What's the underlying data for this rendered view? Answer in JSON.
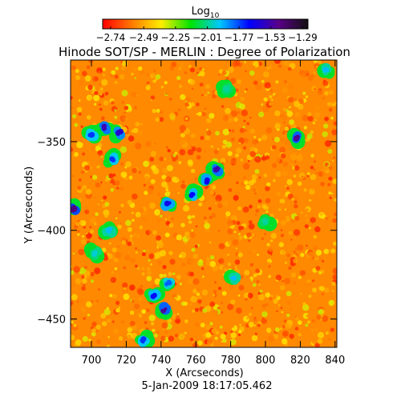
{
  "chart_data": {
    "type": "heatmap",
    "title": "Hinode SOT/SP - MERLIN : Degree of Polarization",
    "subtitle": "",
    "date": "5-Jan-2009 18:17:05.462",
    "xlabel": "X (Arcseconds)",
    "ylabel": "Y (Arcseconds)",
    "xlim": [
      688,
      841
    ],
    "ylim": [
      -466,
      -304
    ],
    "x_ticks": [
      700,
      720,
      740,
      760,
      780,
      800,
      820,
      840
    ],
    "y_ticks": [
      -350,
      -400,
      -450
    ],
    "colorbar": {
      "label_base": "Log",
      "label_sub": "10",
      "range": [
        -2.8,
        -1.25
      ],
      "ticks": [
        -2.74,
        -2.49,
        -2.25,
        -2.01,
        -1.77,
        -1.53,
        -1.29
      ],
      "tick_labels": [
        "−2.74",
        "−2.49",
        "−2.25",
        "−2.01",
        "−1.77",
        "−1.53",
        "−1.29"
      ],
      "colors": [
        "#ff0000",
        "#ff7a00",
        "#ffee00",
        "#00e400",
        "#00c8ff",
        "#0000ff",
        "#5a0088",
        "#111111"
      ]
    },
    "background_level": -2.55,
    "features": [
      {
        "x": 690,
        "y": -388,
        "level": -1.45
      },
      {
        "x": 708,
        "y": -342,
        "level": -1.55
      },
      {
        "x": 716,
        "y": -345,
        "level": -1.6
      },
      {
        "x": 700,
        "y": -346,
        "level": -1.75
      },
      {
        "x": 712,
        "y": -360,
        "level": -1.75
      },
      {
        "x": 772,
        "y": -366,
        "level": -1.55
      },
      {
        "x": 766,
        "y": -372,
        "level": -1.65
      },
      {
        "x": 758,
        "y": -380,
        "level": -1.7
      },
      {
        "x": 744,
        "y": -385,
        "level": -1.65
      },
      {
        "x": 710,
        "y": -400,
        "level": -1.9
      },
      {
        "x": 818,
        "y": -348,
        "level": -1.5
      },
      {
        "x": 742,
        "y": -445,
        "level": -1.5
      },
      {
        "x": 736,
        "y": -437,
        "level": -1.7
      },
      {
        "x": 744,
        "y": -430,
        "level": -1.8
      },
      {
        "x": 782,
        "y": -427,
        "level": -1.9
      },
      {
        "x": 730,
        "y": -462,
        "level": -1.75
      },
      {
        "x": 702,
        "y": -413,
        "level": -1.95
      },
      {
        "x": 835,
        "y": -310,
        "level": -1.9
      },
      {
        "x": 778,
        "y": -320,
        "level": -2.0
      },
      {
        "x": 800,
        "y": -395,
        "level": -2.0
      }
    ]
  }
}
